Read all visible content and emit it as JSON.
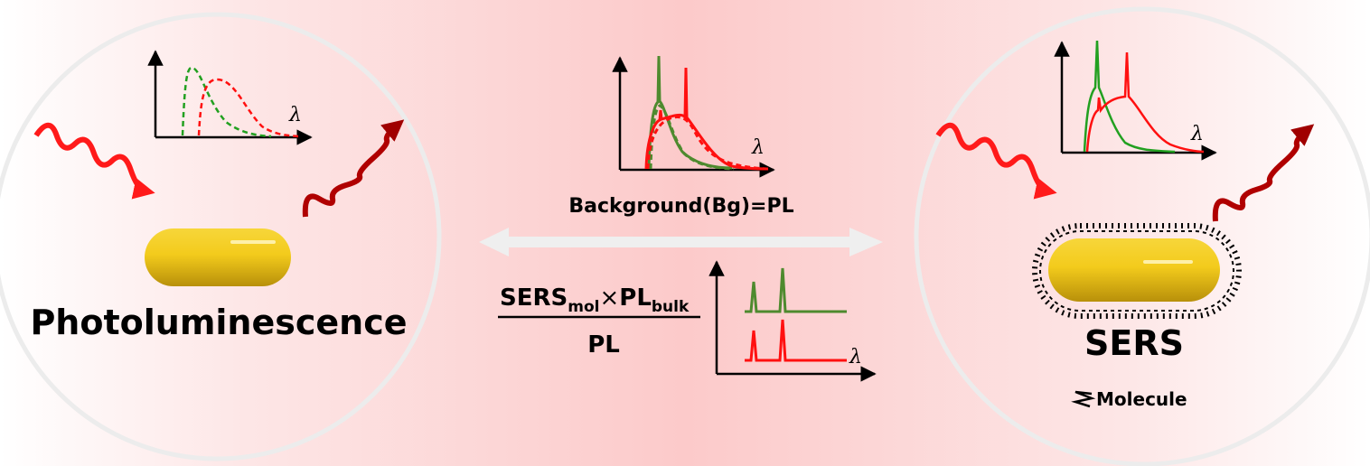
{
  "left_panel": {
    "title": "Photoluminescence",
    "axis_label": "λ"
  },
  "center_panel": {
    "top_plot_axis_label": "λ",
    "caption": "Background(Bg)=PL",
    "formula": {
      "numerator_1": "SERS",
      "sub_1": "mol",
      "times": "×",
      "numerator_2": "PL",
      "sub_2": "bulk",
      "denominator": "PL"
    },
    "bottom_plot_axis_label": "λ"
  },
  "right_panel": {
    "title": "SERS",
    "axis_label": "λ",
    "legend_label": "Molecule"
  },
  "colors": {
    "green": "#4e8a2e",
    "bright_green": "#22a020",
    "red": "#ff1010",
    "dark_red": "#b00000",
    "gold": "#f2c81a",
    "ring": "#ececec"
  }
}
